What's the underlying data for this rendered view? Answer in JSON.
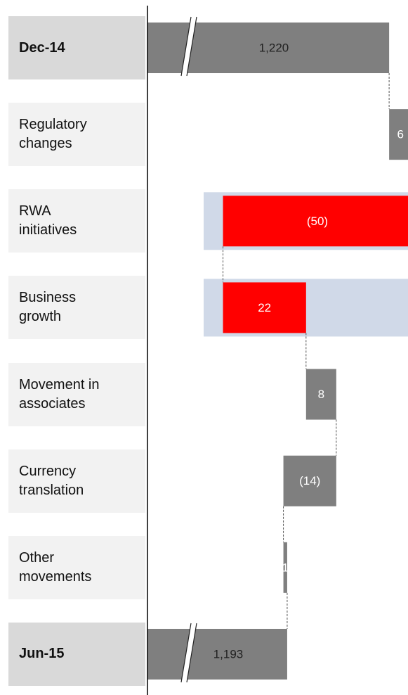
{
  "chart_data": {
    "type": "waterfall",
    "categories": [
      "Dec-14",
      "Regulatory changes",
      "RWA initiatives",
      "Business growth",
      "Movement in associates",
      "Currency translation",
      "Other movements",
      "Jun-15"
    ],
    "values": [
      1220,
      6,
      -50,
      22,
      8,
      -14,
      1,
      1193
    ],
    "value_labels": [
      "1,220",
      "6",
      "(50)",
      "22",
      "8",
      "(14)",
      "1",
      "1,193"
    ],
    "totals": [
      true,
      false,
      false,
      false,
      false,
      false,
      false,
      true
    ],
    "colors": [
      "#7f7f7f",
      "#7f7f7f",
      "#ff0000",
      "#ff0000",
      "#7f7f7f",
      "#7f7f7f",
      "#7f7f7f",
      "#7f7f7f"
    ],
    "highlighted": [
      false,
      false,
      true,
      true,
      false,
      false,
      false,
      false
    ],
    "xlim": [
      1156,
      1225
    ]
  }
}
